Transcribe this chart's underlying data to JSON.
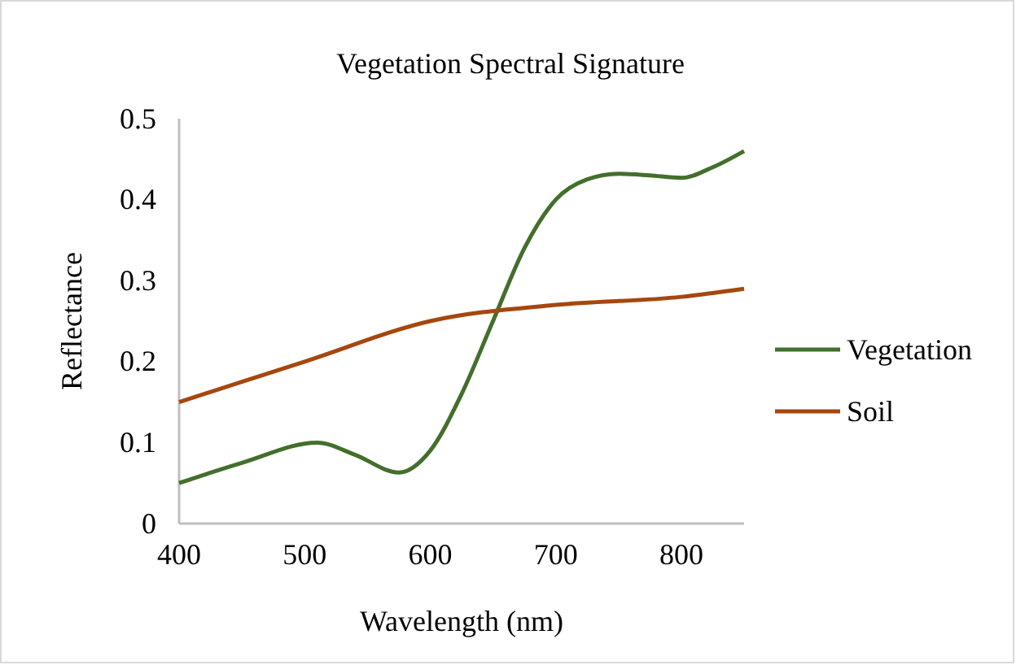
{
  "chart_data": {
    "type": "line",
    "title": "Vegetation Spectral Signature",
    "xlabel": "Wavelength (nm)",
    "ylabel": "Reflectance",
    "xlim": [
      400,
      850
    ],
    "xticks": [
      400,
      500,
      600,
      700,
      800
    ],
    "ylim": [
      0,
      0.5
    ],
    "yticks": [
      0,
      0.1,
      0.2,
      0.3,
      0.4,
      0.5
    ],
    "grid": false,
    "legend": "right",
    "marker": "none",
    "line_style": "solid",
    "series": [
      {
        "name": "Vegetation",
        "color": "#436f2c",
        "x": [
          400,
          450,
          510,
          540,
          575,
          600,
          625,
          650,
          675,
          700,
          725,
          750,
          775,
          800,
          825,
          850
        ],
        "values": [
          0.05,
          0.075,
          0.1,
          0.085,
          0.063,
          0.09,
          0.16,
          0.25,
          0.34,
          0.4,
          0.425,
          0.432,
          0.43,
          0.427,
          0.44,
          0.46
        ]
      },
      {
        "name": "Soil",
        "color": "#a5470f",
        "x": [
          400,
          500,
          600,
          700,
          800,
          850
        ],
        "values": [
          0.15,
          0.2,
          0.25,
          0.27,
          0.28,
          0.29
        ]
      }
    ]
  }
}
